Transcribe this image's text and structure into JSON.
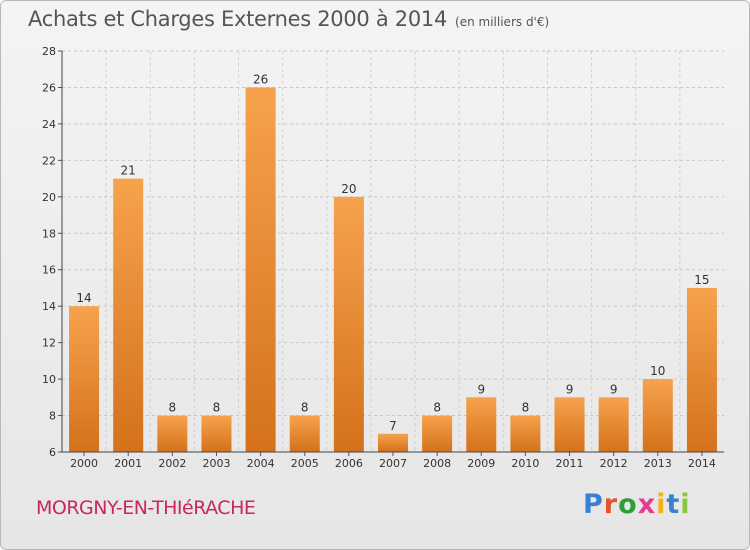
{
  "header": {
    "title": "Achats et Charges Externes 2000 à 2014",
    "subtitle": "(en milliers d'€)"
  },
  "footer": {
    "commune": "MORGNY-EN-THIéRACHE",
    "logo_letters": [
      "P",
      "r",
      "o",
      "x",
      "i",
      "t",
      "i"
    ]
  },
  "colors": {
    "bar_light": "#f6a24c",
    "bar_dark": "#d5711b",
    "commune_text": "#c8285a",
    "logo": [
      "#3b7fd4",
      "#e8522a",
      "#2d9e3a",
      "#e83a8c",
      "#f2b21a",
      "#3b7fd4",
      "#8bc63f"
    ]
  },
  "chart_data": {
    "type": "bar",
    "title": "Achats et Charges Externes 2000 à 2014",
    "subtitle": "(en milliers d'€)",
    "categories": [
      "2000",
      "2001",
      "2002",
      "2003",
      "2004",
      "2005",
      "2006",
      "2007",
      "2008",
      "2009",
      "2010",
      "2011",
      "2012",
      "2013",
      "2014"
    ],
    "values": [
      14,
      21,
      8,
      8,
      26,
      8,
      20,
      7,
      8,
      9,
      8,
      9,
      9,
      10,
      15
    ],
    "ylim": [
      6,
      28
    ],
    "yticks": [
      6,
      8,
      10,
      12,
      14,
      16,
      18,
      20,
      22,
      24,
      26,
      28
    ],
    "grid": "horizontal-dashed"
  }
}
